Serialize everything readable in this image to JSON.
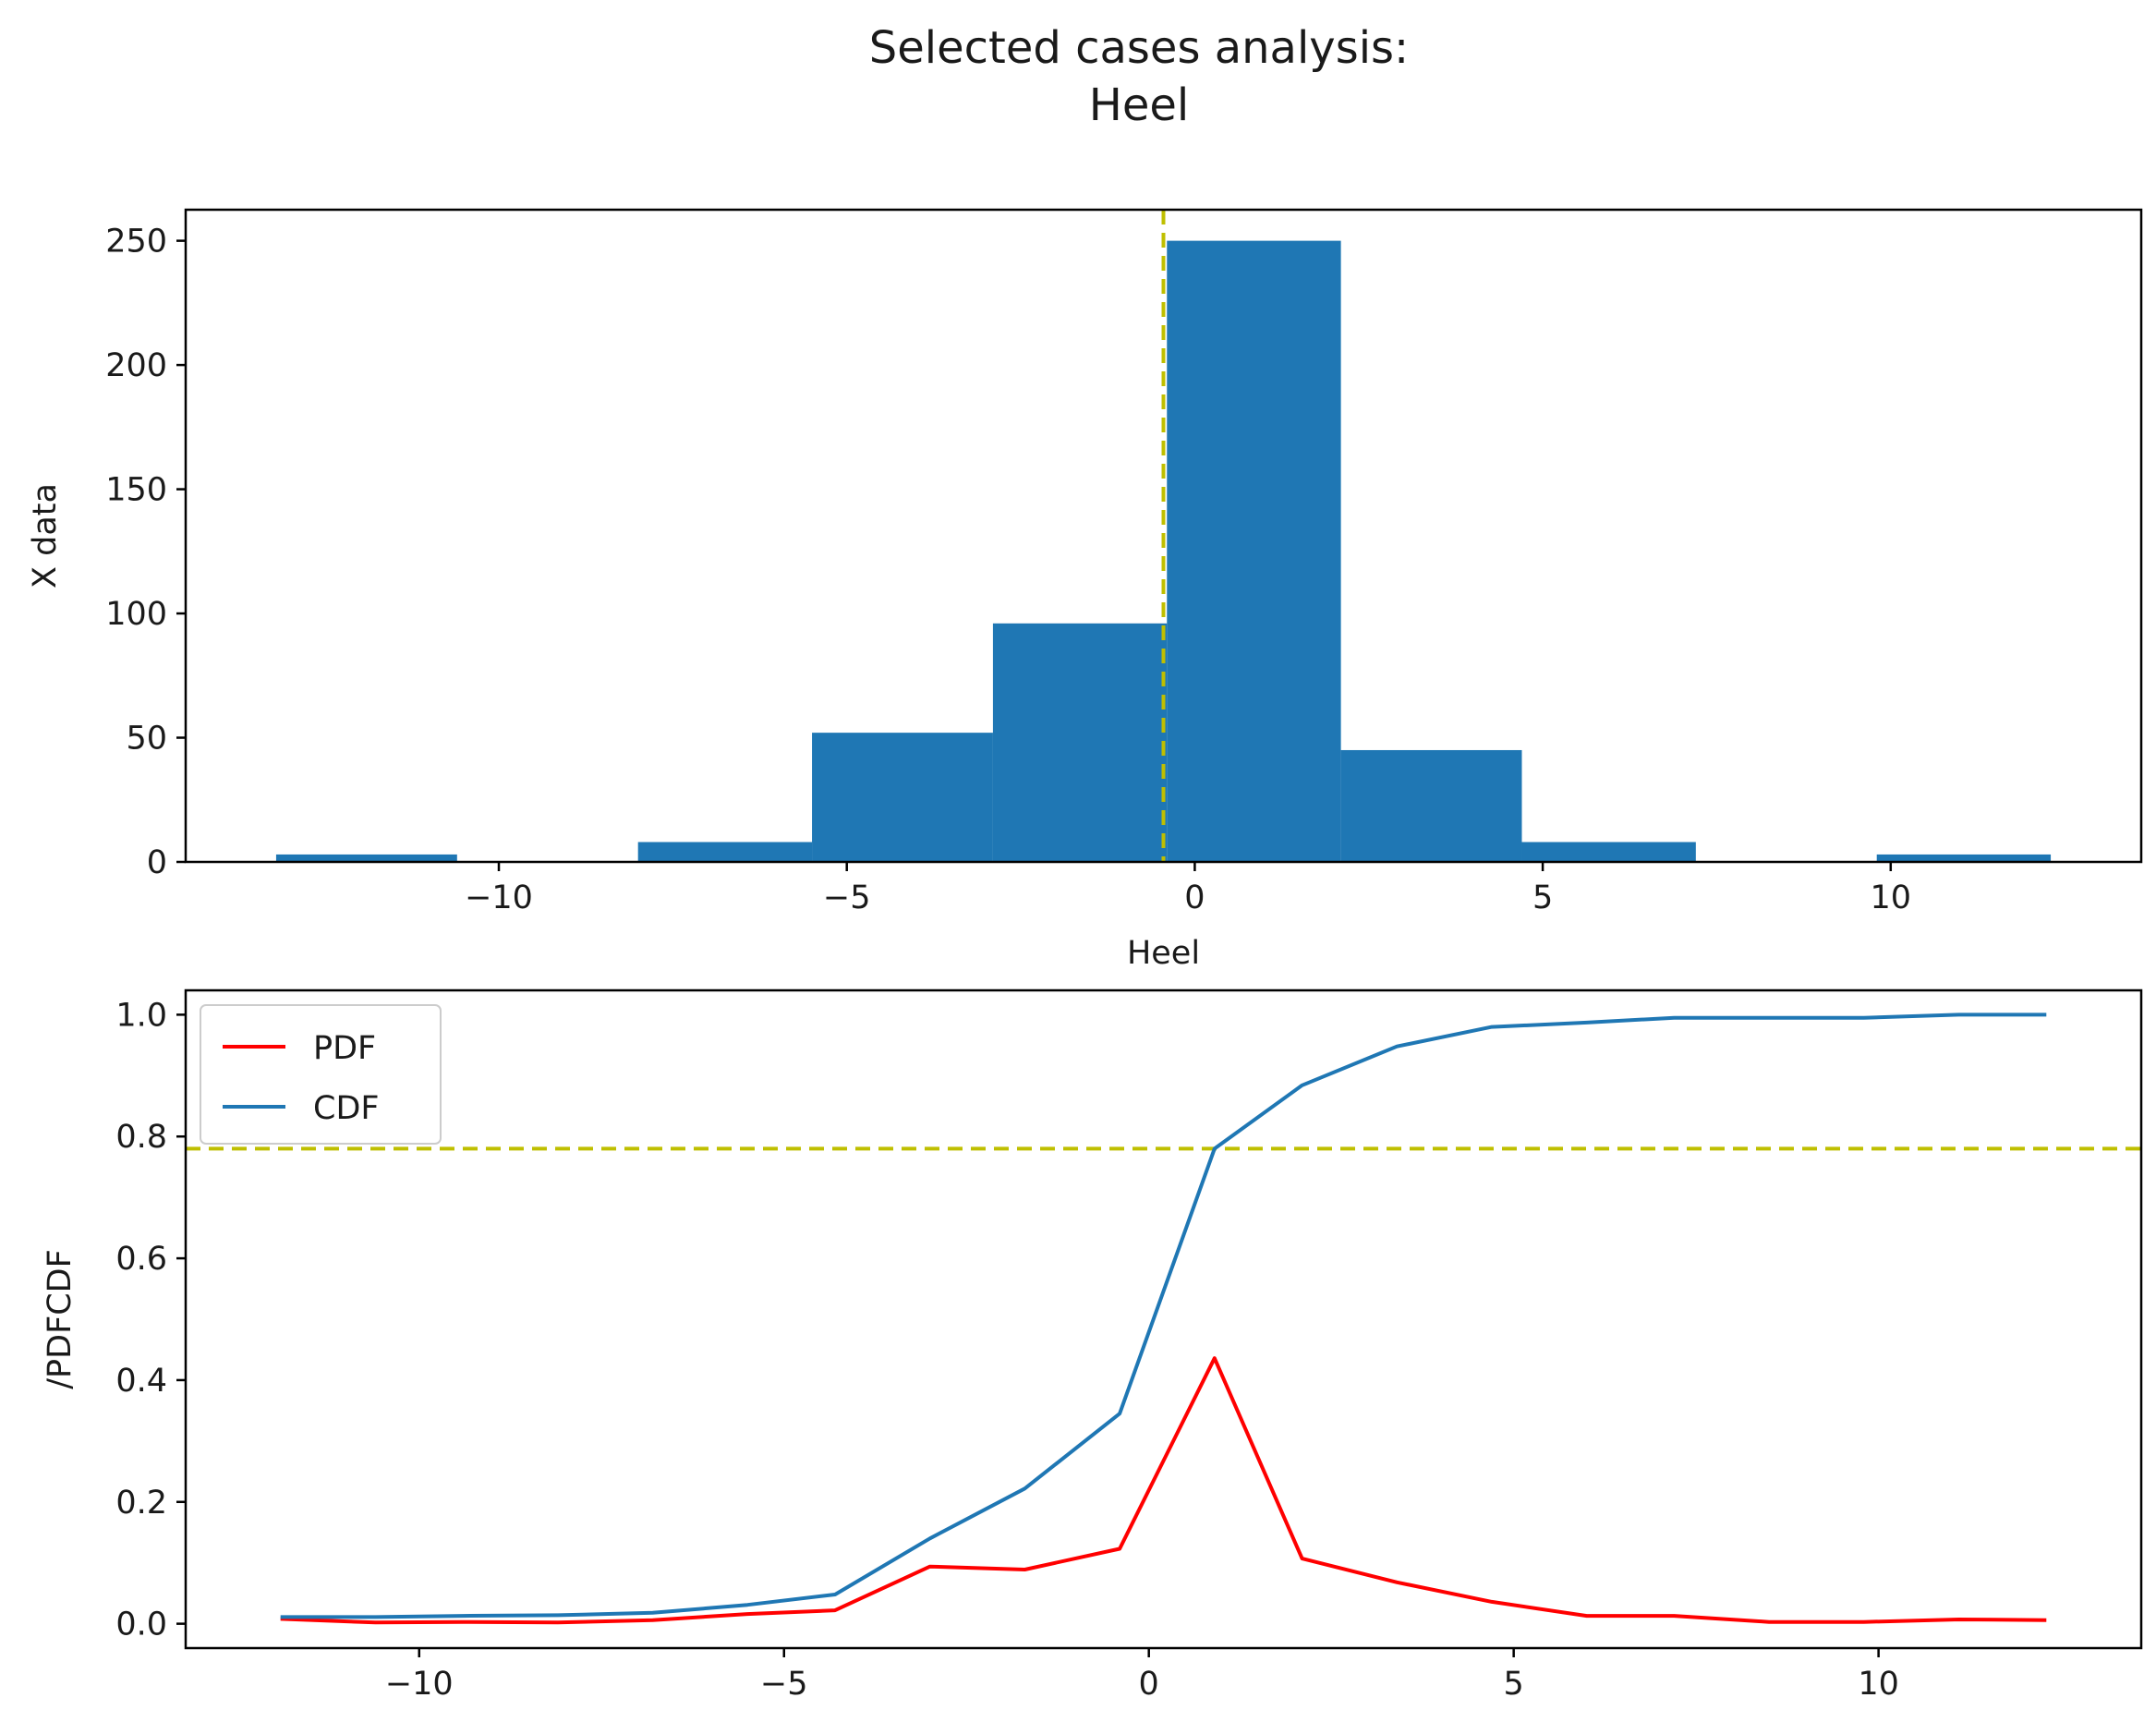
{
  "title": {
    "line1": "Selected cases analysis:",
    "line2": "Heel"
  },
  "colors": {
    "bar": "#1f77b4",
    "cdf": "#1f77b4",
    "pdf": "#ff0000",
    "ref_line": "#bfbf00",
    "xlabel_top": "#2ca02c",
    "ylabel_bottom": "#0000ff"
  },
  "chart_data": [
    {
      "type": "bar",
      "name": "histogram",
      "bins": [
        {
          "x0": -13.2,
          "x1": -10.6,
          "value": 3
        },
        {
          "x0": -10.6,
          "x1": -8.0,
          "value": 0
        },
        {
          "x0": -8.0,
          "x1": -5.5,
          "value": 8
        },
        {
          "x0": -5.5,
          "x1": -2.9,
          "value": 52
        },
        {
          "x0": -2.9,
          "x1": -0.4,
          "value": 96
        },
        {
          "x0": -0.4,
          "x1": 2.1,
          "value": 250
        },
        {
          "x0": 2.1,
          "x1": 4.7,
          "value": 45
        },
        {
          "x0": 4.7,
          "x1": 7.2,
          "value": 8
        },
        {
          "x0": 7.2,
          "x1": 9.8,
          "value": 0
        },
        {
          "x0": 9.8,
          "x1": 12.3,
          "value": 3
        }
      ],
      "vline_x": -0.45,
      "xlabel": "Heel",
      "ylabel": "X data",
      "xlim": [
        -14.5,
        13.6
      ],
      "ylim": [
        0,
        262.5
      ],
      "xticks": [
        -10,
        -5,
        0,
        5,
        10
      ],
      "xtick_labels": [
        "−10",
        "−5",
        "0",
        "5",
        "10"
      ],
      "yticks": [
        0,
        50,
        100,
        150,
        200,
        250
      ],
      "ytick_labels": [
        "0",
        "50",
        "100",
        "150",
        "200",
        "250"
      ]
    },
    {
      "type": "line",
      "name": "pdf-cdf",
      "x": [
        -11.9,
        -10.6,
        -9.4,
        -8.1,
        -6.8,
        -5.5,
        -4.3,
        -3.0,
        -1.7,
        -0.4,
        0.9,
        2.1,
        3.4,
        4.7,
        6.0,
        7.2,
        8.5,
        9.8,
        11.1,
        12.3
      ],
      "series": [
        {
          "name": "PDF",
          "values": [
            0.008,
            0.002,
            0.003,
            0.002,
            0.006,
            0.016,
            0.022,
            0.094,
            0.089,
            0.123,
            0.436,
            0.107,
            0.068,
            0.036,
            0.013,
            0.013,
            0.003,
            0.003,
            0.007,
            0.006
          ]
        },
        {
          "name": "CDF",
          "values": [
            0.011,
            0.011,
            0.013,
            0.014,
            0.018,
            0.031,
            0.048,
            0.14,
            0.222,
            0.345,
            0.78,
            0.884,
            0.948,
            0.98,
            0.987,
            0.995,
            0.995,
            0.995,
            1.0,
            1.0
          ]
        }
      ],
      "hline_y": 0.78,
      "xlabel": "",
      "ylabel": "/PDFCDF",
      "legend": "top-left",
      "xlim": [
        -13.2,
        13.6
      ],
      "ylim": [
        -0.04,
        1.04
      ],
      "xticks": [
        -10,
        -5,
        0,
        5,
        10
      ],
      "xtick_labels": [
        "−10",
        "−5",
        "0",
        "5",
        "10"
      ],
      "yticks": [
        0.0,
        0.2,
        0.4,
        0.6,
        0.8,
        1.0
      ],
      "ytick_labels": [
        "0.0",
        "0.2",
        "0.4",
        "0.6",
        "0.8",
        "1.0"
      ]
    }
  ]
}
